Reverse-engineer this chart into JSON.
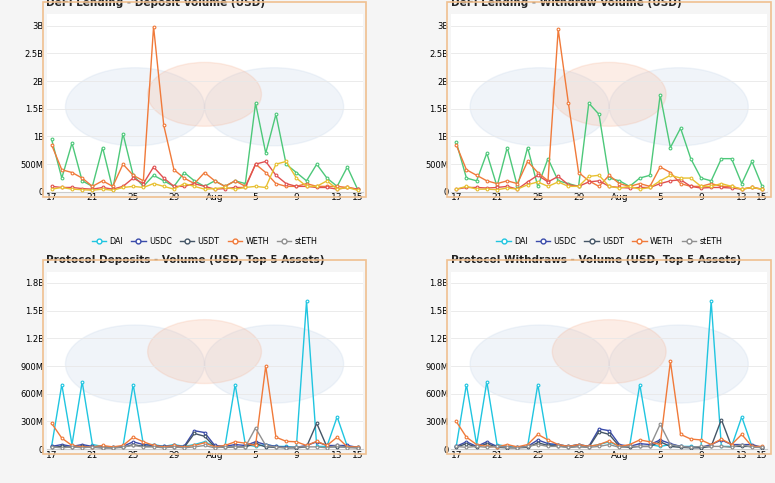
{
  "top_left_title": "DeFi Lending - Deposit Volume (USD)",
  "top_right_title": "DeFi Lending - Withdraw Volume (USD)",
  "bot_left_title": "Protocol Deposits - Volume (USD, Top 5 Assets)",
  "bot_right_title": "Protocol Withdraws - Volume (USD, Top 5 Assets)",
  "x_labels": [
    "17",
    "21",
    "25",
    "29",
    "Aug",
    "5",
    "9",
    "13",
    "15"
  ],
  "x_tick_pos": [
    0,
    4,
    8,
    12,
    16,
    20,
    24,
    28,
    30
  ],
  "protocol_colors": {
    "aavev2": "#4dc87a",
    "aavev3": "#f07a3a",
    "compoundv2": "#e05050",
    "makerdao": "#e8c030"
  },
  "asset_colors": {
    "DAI": "#20c5e0",
    "USDC": "#3a4baa",
    "USDT": "#445566",
    "WETH": "#f07a3a",
    "stETH": "#909090"
  },
  "dep_aavev2": [
    950,
    250,
    880,
    200,
    100,
    800,
    50,
    1050,
    300,
    100,
    300,
    200,
    100,
    350,
    200,
    100,
    200,
    100,
    200,
    150,
    1600,
    700,
    1400,
    500,
    350,
    200,
    500,
    250,
    100,
    450,
    50
  ],
  "dep_aavev3": [
    850,
    400,
    350,
    250,
    100,
    200,
    100,
    500,
    300,
    200,
    2980,
    1200,
    400,
    250,
    150,
    350,
    200,
    100,
    200,
    100,
    500,
    350,
    150,
    100,
    100,
    150,
    100,
    100,
    100,
    80,
    50
  ],
  "dep_compv2": [
    100,
    80,
    80,
    60,
    50,
    80,
    50,
    100,
    250,
    150,
    450,
    250,
    100,
    100,
    150,
    100,
    50,
    60,
    80,
    80,
    500,
    550,
    300,
    150,
    100,
    100,
    80,
    80,
    50,
    80,
    50
  ],
  "dep_makerdao": [
    50,
    80,
    50,
    40,
    30,
    50,
    30,
    80,
    100,
    80,
    150,
    100,
    50,
    150,
    100,
    50,
    60,
    80,
    50,
    80,
    100,
    80,
    500,
    550,
    250,
    100,
    100,
    200,
    50,
    80,
    30
  ],
  "wd_aavev2": [
    900,
    250,
    200,
    700,
    100,
    800,
    100,
    800,
    100,
    600,
    200,
    150,
    100,
    1600,
    1400,
    250,
    200,
    100,
    250,
    300,
    1750,
    800,
    1150,
    600,
    250,
    200,
    600,
    600,
    150,
    550,
    100
  ],
  "wd_aavev3": [
    850,
    400,
    300,
    200,
    150,
    200,
    150,
    550,
    350,
    200,
    2930,
    1600,
    350,
    200,
    100,
    300,
    150,
    100,
    150,
    100,
    450,
    350,
    150,
    100,
    100,
    150,
    100,
    100,
    50,
    80,
    50
  ],
  "wd_compv2": [
    50,
    80,
    80,
    70,
    80,
    100,
    50,
    180,
    300,
    180,
    280,
    130,
    100,
    180,
    200,
    100,
    80,
    70,
    80,
    80,
    150,
    200,
    220,
    100,
    70,
    80,
    80,
    70,
    50,
    80,
    50
  ],
  "wd_makerdao": [
    50,
    100,
    50,
    50,
    40,
    70,
    50,
    130,
    180,
    100,
    180,
    100,
    100,
    280,
    300,
    100,
    70,
    100,
    50,
    80,
    200,
    300,
    250,
    250,
    100,
    100,
    150,
    100,
    50,
    80,
    50
  ],
  "dep_DAI": [
    30,
    700,
    50,
    730,
    50,
    30,
    20,
    30,
    700,
    50,
    50,
    30,
    50,
    30,
    50,
    80,
    30,
    30,
    700,
    50,
    30,
    50,
    30,
    30,
    20,
    1600,
    30,
    30,
    350,
    30,
    20
  ],
  "dep_USDC": [
    30,
    50,
    30,
    50,
    30,
    20,
    20,
    30,
    80,
    50,
    40,
    30,
    40,
    30,
    200,
    180,
    40,
    30,
    50,
    40,
    80,
    50,
    30,
    20,
    20,
    40,
    80,
    40,
    40,
    40,
    20
  ],
  "dep_USDT": [
    20,
    30,
    20,
    30,
    20,
    15,
    15,
    20,
    50,
    30,
    30,
    20,
    25,
    20,
    170,
    140,
    25,
    20,
    25,
    25,
    60,
    25,
    20,
    15,
    15,
    25,
    280,
    25,
    25,
    25,
    15
  ],
  "dep_WETH": [
    280,
    120,
    40,
    25,
    25,
    40,
    25,
    40,
    130,
    80,
    40,
    25,
    40,
    25,
    40,
    70,
    25,
    40,
    80,
    65,
    40,
    900,
    130,
    85,
    80,
    40,
    85,
    40,
    130,
    25,
    25
  ],
  "dep_stETH": [
    25,
    15,
    25,
    15,
    25,
    15,
    15,
    25,
    40,
    25,
    25,
    15,
    25,
    15,
    25,
    40,
    15,
    25,
    25,
    25,
    230,
    40,
    25,
    15,
    25,
    25,
    25,
    15,
    40,
    15,
    15
  ],
  "wd_DAI": [
    30,
    700,
    50,
    730,
    50,
    30,
    20,
    30,
    700,
    50,
    50,
    30,
    50,
    30,
    50,
    80,
    30,
    30,
    700,
    50,
    30,
    50,
    30,
    30,
    20,
    1600,
    30,
    30,
    350,
    30,
    20
  ],
  "wd_USDC": [
    30,
    80,
    30,
    80,
    30,
    20,
    20,
    30,
    100,
    60,
    50,
    30,
    50,
    30,
    220,
    200,
    50,
    30,
    60,
    50,
    100,
    60,
    30,
    20,
    20,
    50,
    100,
    50,
    50,
    50,
    20
  ],
  "wd_USDT": [
    20,
    60,
    20,
    60,
    20,
    15,
    15,
    20,
    70,
    40,
    35,
    20,
    30,
    20,
    190,
    160,
    30,
    20,
    30,
    30,
    80,
    30,
    20,
    15,
    15,
    30,
    320,
    30,
    30,
    30,
    15
  ],
  "wd_WETH": [
    300,
    130,
    50,
    30,
    25,
    50,
    25,
    50,
    160,
    100,
    50,
    30,
    50,
    30,
    50,
    90,
    30,
    50,
    100,
    80,
    50,
    950,
    160,
    110,
    100,
    50,
    110,
    50,
    160,
    30,
    30
  ],
  "wd_stETH": [
    30,
    20,
    30,
    20,
    30,
    20,
    15,
    30,
    50,
    30,
    30,
    20,
    30,
    20,
    30,
    50,
    20,
    30,
    30,
    30,
    270,
    50,
    30,
    20,
    30,
    30,
    30,
    20,
    50,
    20,
    20
  ],
  "bg_color": "#f5f5f5",
  "panel_bg": "#ffffff",
  "grid_color": "#e8e8e8",
  "border_color": "#f0c090"
}
